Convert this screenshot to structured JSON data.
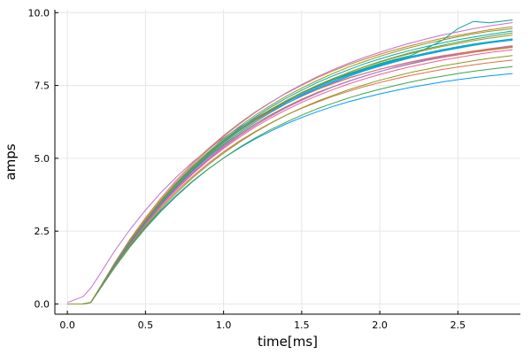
{
  "chart_data": {
    "type": "line",
    "title": "",
    "xlabel": "time[ms]",
    "ylabel": "amps",
    "xlim": [
      -0.08,
      2.9
    ],
    "ylim": [
      -0.35,
      10.1
    ],
    "xticks": [
      0.0,
      0.5,
      1.0,
      1.5,
      2.0,
      2.5
    ],
    "xtick_labels": [
      "0.0",
      "0.5",
      "1.0",
      "1.5",
      "2.0",
      "2.5"
    ],
    "yticks": [
      0.0,
      2.5,
      5.0,
      7.5,
      10.0
    ],
    "ytick_labels": [
      "0.0",
      "2.5",
      "5.0",
      "7.5",
      "10.0"
    ],
    "grid": true,
    "legend": "none",
    "x": [
      0.0,
      0.1,
      0.15,
      0.2,
      0.3,
      0.4,
      0.5,
      0.6,
      0.7,
      0.8,
      0.9,
      1.0,
      1.1,
      1.2,
      1.3,
      1.4,
      1.5,
      1.6,
      1.7,
      1.8,
      1.9,
      2.0,
      2.1,
      2.2,
      2.3,
      2.4,
      2.5,
      2.6,
      2.7,
      2.85
    ],
    "series": [
      {
        "color": "#009AFA",
        "values": [
          0.0,
          0.0,
          0.05,
          0.45,
          1.26,
          1.99,
          2.64,
          3.22,
          3.74,
          4.21,
          4.63,
          5.01,
          5.35,
          5.66,
          5.93,
          6.18,
          6.4,
          6.6,
          6.78,
          6.94,
          7.08,
          7.21,
          7.33,
          7.44,
          7.53,
          7.62,
          7.7,
          7.77,
          7.83,
          7.91
        ]
      },
      {
        "color": "#E36F47",
        "values": [
          0.0,
          0.0,
          0.05,
          0.46,
          1.29,
          2.04,
          2.72,
          3.33,
          3.88,
          4.37,
          4.82,
          5.22,
          5.59,
          5.91,
          6.21,
          6.48,
          6.72,
          6.93,
          7.13,
          7.3,
          7.46,
          7.6,
          7.73,
          7.85,
          7.95,
          8.05,
          8.13,
          8.21,
          8.28,
          8.37
        ]
      },
      {
        "color": "#3EA44E",
        "values": [
          0.0,
          0.0,
          0.05,
          0.44,
          1.23,
          1.95,
          2.6,
          3.18,
          3.71,
          4.19,
          4.62,
          5.01,
          5.37,
          5.69,
          5.98,
          6.24,
          6.48,
          6.7,
          6.89,
          7.07,
          7.23,
          7.37,
          7.5,
          7.62,
          7.73,
          7.82,
          7.91,
          7.99,
          8.06,
          8.15
        ]
      },
      {
        "color": "#C271D2",
        "values": [
          0.05,
          0.25,
          0.55,
          0.95,
          1.8,
          2.55,
          3.22,
          3.83,
          4.37,
          4.86,
          5.3,
          5.7,
          6.06,
          6.38,
          6.67,
          6.94,
          7.17,
          7.39,
          7.58,
          7.76,
          7.91,
          8.06,
          8.18,
          8.3,
          8.4,
          8.5,
          8.58,
          8.66,
          8.72,
          8.81
        ]
      },
      {
        "color": "#AC8E18",
        "values": [
          0.0,
          0.0,
          0.05,
          0.47,
          1.33,
          2.11,
          2.82,
          3.46,
          4.04,
          4.56,
          5.03,
          5.45,
          5.83,
          6.18,
          6.49,
          6.77,
          7.03,
          7.26,
          7.46,
          7.65,
          7.82,
          7.98,
          8.12,
          8.24,
          8.36,
          8.46,
          8.55,
          8.64,
          8.71,
          8.81
        ]
      },
      {
        "color": "#00A9AD",
        "values": [
          0.0,
          0.0,
          0.05,
          0.48,
          1.36,
          2.16,
          2.88,
          3.54,
          4.13,
          4.67,
          5.15,
          5.59,
          5.99,
          6.35,
          6.67,
          6.97,
          7.23,
          7.47,
          7.69,
          7.88,
          8.06,
          8.22,
          8.37,
          8.5,
          8.62,
          8.73,
          8.83,
          8.92,
          9.0,
          9.1
        ]
      },
      {
        "color": "#ED5E93",
        "values": [
          0.0,
          0.0,
          0.05,
          0.47,
          1.31,
          2.08,
          2.78,
          3.42,
          3.99,
          4.51,
          4.98,
          5.41,
          5.79,
          6.14,
          6.46,
          6.75,
          7.01,
          7.24,
          7.45,
          7.65,
          7.82,
          7.98,
          8.12,
          8.25,
          8.37,
          8.47,
          8.57,
          8.66,
          8.74,
          8.84
        ]
      },
      {
        "color": "#C68225",
        "values": [
          0.0,
          0.0,
          0.05,
          0.49,
          1.39,
          2.21,
          2.96,
          3.64,
          4.26,
          4.82,
          5.32,
          5.78,
          6.2,
          6.58,
          6.92,
          7.23,
          7.51,
          7.77,
          8.0,
          8.21,
          8.4,
          8.57,
          8.73,
          8.87,
          9.0,
          9.12,
          9.22,
          9.32,
          9.41,
          9.52
        ]
      },
      {
        "color": "#00A98D",
        "values": [
          0.0,
          0.0,
          0.05,
          0.48,
          1.35,
          2.14,
          2.86,
          3.52,
          4.11,
          4.65,
          5.14,
          5.58,
          5.98,
          6.34,
          6.67,
          6.97,
          7.24,
          7.48,
          7.7,
          7.9,
          8.08,
          8.25,
          8.4,
          8.53,
          8.78,
          9.05,
          9.45,
          9.7,
          9.65,
          9.75
        ]
      },
      {
        "color": "#8E971E",
        "values": [
          0.0,
          0.0,
          0.05,
          0.45,
          1.26,
          2.0,
          2.67,
          3.27,
          3.82,
          4.32,
          4.77,
          5.18,
          5.55,
          5.89,
          6.2,
          6.48,
          6.73,
          6.96,
          7.16,
          7.35,
          7.52,
          7.68,
          7.82,
          7.95,
          8.06,
          8.17,
          8.26,
          8.35,
          8.43,
          8.53
        ]
      },
      {
        "color": "#00A8CB",
        "values": [
          0.0,
          0.0,
          0.05,
          0.48,
          1.34,
          2.13,
          2.85,
          3.5,
          4.09,
          4.62,
          5.1,
          5.54,
          5.94,
          6.3,
          6.63,
          6.92,
          7.19,
          7.43,
          7.65,
          7.85,
          8.03,
          8.19,
          8.34,
          8.47,
          8.59,
          8.7,
          8.8,
          8.89,
          8.97,
          9.07
        ]
      },
      {
        "color": "#9B7FE9",
        "values": [
          0.0,
          0.0,
          0.05,
          0.46,
          1.3,
          2.06,
          2.76,
          3.39,
          3.96,
          4.48,
          4.95,
          5.38,
          5.77,
          6.12,
          6.44,
          6.73,
          6.99,
          7.23,
          7.45,
          7.64,
          7.82,
          7.98,
          8.13,
          8.26,
          8.38,
          8.49,
          8.59,
          8.68,
          8.76,
          8.87
        ]
      },
      {
        "color": "#E36F47",
        "values": [
          0.0,
          0.0,
          0.05,
          0.49,
          1.37,
          2.17,
          2.89,
          3.54,
          4.12,
          4.65,
          5.13,
          5.56,
          5.94,
          6.29,
          6.6,
          6.88,
          7.13,
          7.36,
          7.56,
          7.75,
          7.91,
          8.06,
          8.19,
          8.31,
          8.42,
          8.52,
          8.6,
          8.68,
          8.75,
          8.84
        ]
      },
      {
        "color": "#3EA44E",
        "values": [
          0.0,
          0.0,
          0.05,
          0.47,
          1.32,
          2.1,
          2.81,
          3.46,
          4.05,
          4.59,
          5.08,
          5.53,
          5.94,
          6.31,
          6.65,
          6.96,
          7.24,
          7.5,
          7.73,
          7.95,
          8.14,
          8.32,
          8.48,
          8.63,
          8.76,
          8.88,
          8.99,
          9.09,
          9.18,
          9.3
        ]
      },
      {
        "color": "#ED5E93",
        "values": [
          0.0,
          0.0,
          0.05,
          0.46,
          1.3,
          2.06,
          2.75,
          3.38,
          3.94,
          4.45,
          4.92,
          5.34,
          5.72,
          6.07,
          6.38,
          6.66,
          6.92,
          7.15,
          7.36,
          7.55,
          7.72,
          7.88,
          8.02,
          8.15,
          8.26,
          8.37,
          8.46,
          8.55,
          8.63,
          8.73
        ]
      },
      {
        "color": "#00A9AD",
        "values": [
          0.0,
          0.0,
          0.05,
          0.47,
          1.34,
          2.13,
          2.86,
          3.52,
          4.12,
          4.67,
          5.17,
          5.62,
          6.03,
          6.41,
          6.75,
          7.06,
          7.34,
          7.6,
          7.83,
          8.04,
          8.24,
          8.41,
          8.57,
          8.71,
          8.84,
          8.96,
          9.07,
          9.16,
          9.25,
          9.37
        ]
      },
      {
        "color": "#C271D2",
        "values": [
          0.0,
          0.0,
          0.05,
          0.48,
          1.36,
          2.17,
          2.91,
          3.58,
          4.2,
          4.76,
          5.28,
          5.75,
          6.17,
          6.56,
          6.91,
          7.24,
          7.53,
          7.8,
          8.04,
          8.26,
          8.46,
          8.64,
          8.81,
          8.96,
          9.1,
          9.23,
          9.34,
          9.45,
          9.54,
          9.66
        ]
      },
      {
        "color": "#AC8E18",
        "values": [
          0.0,
          0.0,
          0.05,
          0.47,
          1.33,
          2.12,
          2.84,
          3.49,
          4.09,
          4.63,
          5.12,
          5.57,
          5.97,
          6.34,
          6.68,
          6.98,
          7.26,
          7.51,
          7.74,
          7.94,
          8.13,
          8.3,
          8.46,
          8.6,
          8.72,
          8.84,
          8.94,
          9.04,
          9.12,
          9.23
        ]
      },
      {
        "color": "#009AFA",
        "values": [
          0.0,
          0.0,
          0.05,
          0.46,
          1.31,
          2.09,
          2.8,
          3.44,
          4.03,
          4.56,
          5.04,
          5.48,
          5.88,
          6.24,
          6.57,
          6.87,
          7.14,
          7.39,
          7.61,
          7.81,
          8.0,
          8.16,
          8.31,
          8.45,
          8.57,
          8.68,
          8.78,
          8.88,
          8.96,
          9.06
        ]
      },
      {
        "color": "#8E971E",
        "values": [
          0.0,
          0.0,
          0.05,
          0.48,
          1.35,
          2.15,
          2.88,
          3.55,
          4.16,
          4.71,
          5.21,
          5.67,
          6.09,
          6.47,
          6.81,
          7.13,
          7.41,
          7.67,
          7.91,
          8.13,
          8.32,
          8.5,
          8.66,
          8.81,
          8.94,
          9.06,
          9.17,
          9.27,
          9.36,
          9.45
        ]
      }
    ]
  }
}
